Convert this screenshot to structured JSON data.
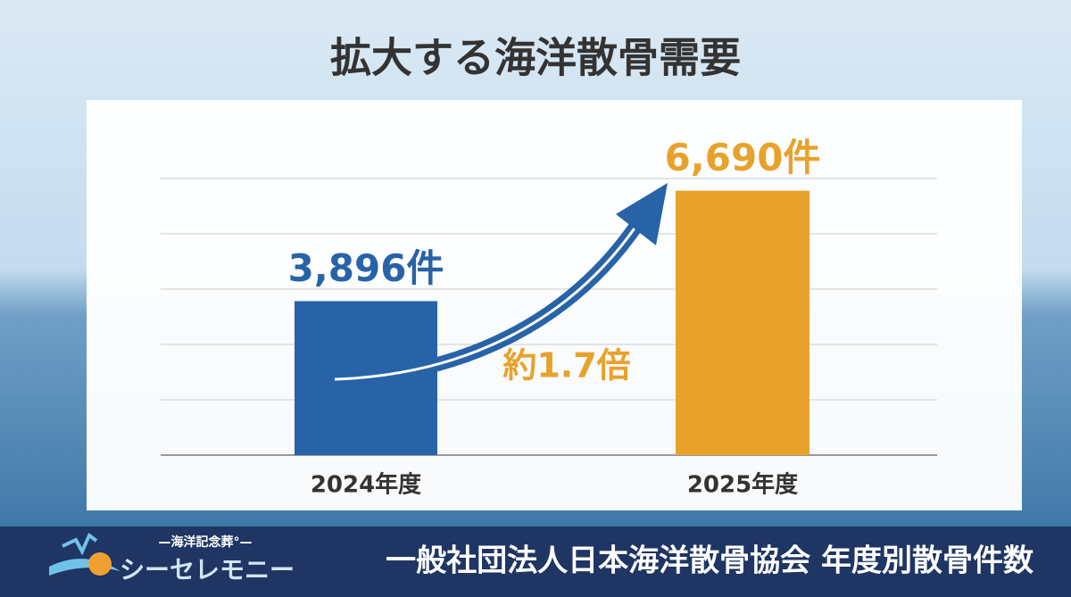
{
  "chart_data": {
    "type": "bar",
    "title": "拡大する海洋散骨需要",
    "categories": [
      "2024年度",
      "2025年度"
    ],
    "values": [
      3896,
      6690
    ],
    "value_labels": [
      "3,896件",
      "6,690件"
    ],
    "colors": [
      "#2863a8",
      "#e8a22c"
    ],
    "ylim": [
      0,
      7000
    ],
    "grid": true,
    "annotation": "約1.7倍",
    "annotation_color": "#e8a22c"
  },
  "footer": {
    "logo_subtitle": "—海洋記念葬°—",
    "logo_name": "シーセレモニー",
    "source": "一般社団法人日本海洋散骨協会 年度別散骨件数"
  }
}
